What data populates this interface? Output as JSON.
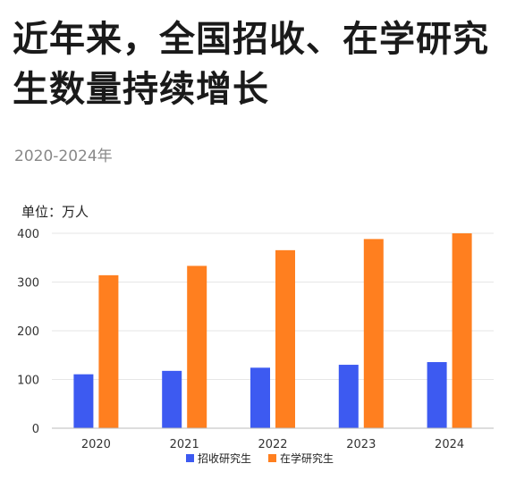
{
  "title": "近年来，全国招收、在学研究生数量持续增长",
  "subtitle": "2020-2024年",
  "unit_label": "单位：万人",
  "chart_data": {
    "type": "bar",
    "categories": [
      "2020",
      "2021",
      "2022",
      "2023",
      "2024"
    ],
    "series": [
      {
        "name": "招收研究生",
        "color": "#3d5af1",
        "values": [
          110.7,
          117.7,
          124.2,
          130.2,
          135.7
        ]
      },
      {
        "name": "在学研究生",
        "color": "#ff7f1f",
        "values": [
          314.0,
          333.2,
          365.4,
          388.3,
          409.5
        ]
      }
    ],
    "ylim": [
      0,
      400
    ],
    "yticks": [
      0,
      100,
      200,
      300,
      400
    ],
    "grid": true,
    "legend_position": "bottom-center"
  }
}
